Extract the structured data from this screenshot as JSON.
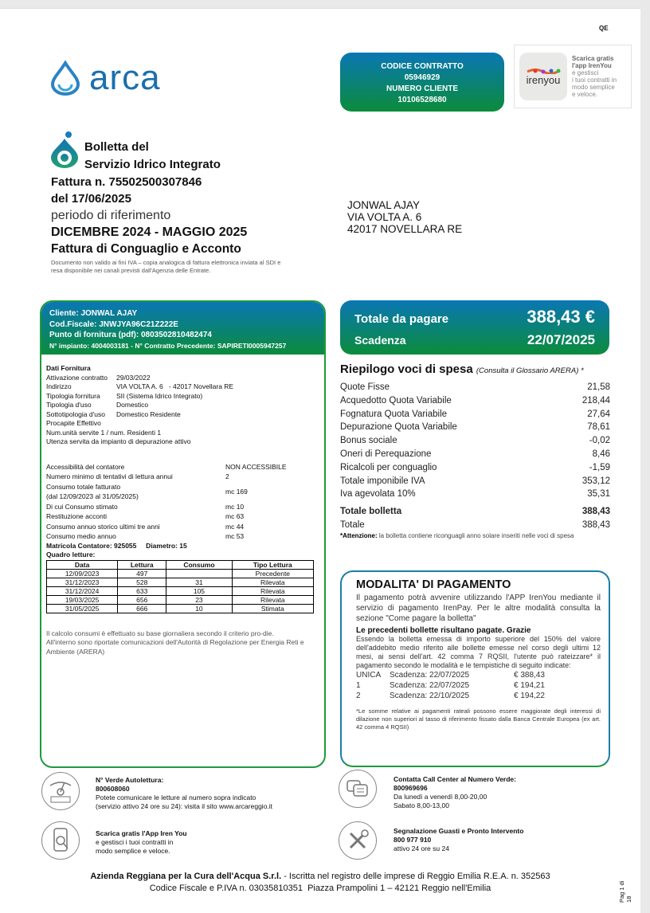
{
  "header": {
    "qe": "QE",
    "logo_text": "arca",
    "contract": {
      "codice_label": "CODICE CONTRATTO",
      "codice": "05946929",
      "cliente_label": "NUMERO CLIENTE",
      "cliente": "10106528680"
    },
    "app_promo": {
      "logo_text": "irenyou",
      "title1": "Scarica gratis",
      "title2": "l'app IrenYou",
      "line1": "e gestisci",
      "line2": "i tuoi contratti in",
      "line3": "modo semplice",
      "line4": "e veloce."
    }
  },
  "title": {
    "line1": "Bolletta del",
    "line2": "Servizio Idrico Integrato",
    "fattura": "Fattura n. 75502500307846",
    "data": "del 17/06/2025",
    "periodo_label": "periodo di riferimento",
    "periodo": "DICEMBRE 2024 - MAGGIO 2025",
    "tipo": "Fattura di Conguaglio e Acconto",
    "nota1": "Documento non valido ai fini IVA – copia analogica di fattura elettronica inviata al SDI e",
    "nota2": "resa disponibile nei canali previsti dall'Agenzia delle Entrate."
  },
  "address": {
    "name": "JONWAL AJAY",
    "street": "VIA VOLTA A. 6",
    "city": "42017 NOVELLARA RE"
  },
  "client": {
    "cliente": "Cliente: JONWAL AJAY",
    "cf": "Cod.Fiscale: JNWJYA96C21Z222E",
    "pdf": "Punto di fornitura (pdf): 0803502810482474",
    "impianto": "N° impianto: 4004003181   - N° Contratto Precedente: SAPIRETI0005947257"
  },
  "fornitura": {
    "title": "Dati Fornitura",
    "rows": [
      {
        "k": "Attivazione contratto",
        "v": "29/03/2022"
      },
      {
        "k": "Indirizzo",
        "v": "VIA VOLTA A. 6   - 42017 Novellara RE"
      },
      {
        "k": "Tipologia fornitura",
        "v": "SII (Sistema Idrico Integrato)"
      },
      {
        "k": "Tipologia d'uso",
        "v": "Domestico"
      },
      {
        "k": "Sottotipologia d'uso",
        "v": "Domestico Residente"
      }
    ],
    "procapite": "Procapite Effettivo",
    "unita": "Num.unità servite  1  / num. Residenti  1",
    "depurazione": "Utenza servita da impianto di depurazione attivo",
    "meter": [
      {
        "k": "Accessibilità del contatore",
        "v": "NON ACCESSIBILE"
      },
      {
        "k": "Numero minimo di tentativi di lettura annui",
        "v": "2"
      },
      {
        "k": "Consumo totale fatturato",
        "k2": "(dal 12/09/2023 al 31/05/2025)",
        "v": "mc 169"
      },
      {
        "k": "Di cui Consumo stimato",
        "v": "mc 10"
      },
      {
        "k": "Restituzione acconti",
        "v": "mc 63"
      },
      {
        "k": "Consumo annuo storico ultimi tre anni",
        "v": "mc 44"
      },
      {
        "k": "Consumo medio annuo",
        "v": "mc 53"
      }
    ],
    "matricola": "Matricola Contatore: 925055     Diametro: 15",
    "quadro": "Quadro letture:",
    "table_headers": [
      "Data",
      "Lettura",
      "Consumo",
      "Tipo Lettura"
    ],
    "table_rows": [
      [
        "12/09/2023",
        "497",
        "",
        "Precedente"
      ],
      [
        "31/12/2023",
        "528",
        "31",
        "Rilevata"
      ],
      [
        "31/12/2024",
        "633",
        "105",
        "Rilevata"
      ],
      [
        "19/03/2025",
        "656",
        "23",
        "Rilevata"
      ],
      [
        "31/05/2025",
        "666",
        "10",
        "Stimata"
      ]
    ],
    "note1": "Il calcolo consumi è effettuato su base giornaliera secondo il criterio pro-die.",
    "note2": "All'interno sono riportate comunicazioni dell'Autorità di Regolazione per Energia Reti e Ambiente  (ARERA)"
  },
  "total": {
    "label": "Totale da pagare",
    "amount": "388,43 €",
    "scad_label": "Scadenza",
    "scad": "22/07/2025"
  },
  "riepilogo": {
    "title": "Riepilogo voci di spesa",
    "subtitle": "(Consulta il Glossario ARERA) *",
    "rows": [
      {
        "k": "Quote Fisse",
        "v": "21,58"
      },
      {
        "k": "Acquedotto Quota Variabile",
        "v": "218,44"
      },
      {
        "k": "Fognatura Quota Variabile",
        "v": "27,64"
      },
      {
        "k": "Depurazione Quota Variabile",
        "v": "78,61"
      },
      {
        "k": "Bonus sociale",
        "v": "-0,02"
      },
      {
        "k": "Oneri di Perequazione",
        "v": "8,46"
      },
      {
        "k": "Ricalcoli per conguaglio",
        "v": "-1,59"
      },
      {
        "k": "Totale imponibile IVA",
        "v": "353,12"
      },
      {
        "k": "Iva agevolata 10%",
        "v": "35,31"
      }
    ],
    "tot_label": "Totale bolletta",
    "tot": "388,43",
    "totale_label": "Totale",
    "totale": "388,43",
    "att_bold": "*Attenzione:",
    "att": " la bolletta contiene riconguagli anno solare inseriti nelle voci di spesa"
  },
  "pagamento": {
    "title": "MODALITA' DI PAGAMENTO",
    "text": "Il pagamento potrà avvenire utilizzando l'APP IrenYou mediante il servizio di pagamento IrenPay. Per le altre modalità consulta la sezione \"Come pagare la bolletta\"",
    "pagate": "Le precedenti bollette risultano pagate. Grazie",
    "rate_text": "Essendo la bolletta emessa di importo superiore del 150% del valore dell'addebito medio riferito alle bollette emesse nel corso degli ultimi 12 mesi, ai sensi dell'art. 42 comma 7 RQSII, l'utente può rateizzare* il pagamento secondo le modalità e le tempistiche di seguito indicate:",
    "rate": [
      [
        "UNICA",
        "Scadenza: 22/07/2025",
        "€ 388,43"
      ],
      [
        "1",
        "Scadenza: 22/07/2025",
        "€ 194,21"
      ],
      [
        "2",
        "Scadenza: 22/10/2025",
        "€ 194,22"
      ]
    ],
    "note": "*Le somme relative ai pagamenti rateali possono essere maggiorate degli interessi di dilazione non superiori al tasso di riferimento fissato dalla Banca Centrale Europea (ex art. 42 comma 4 RQSII)"
  },
  "contacts": [
    {
      "title": "N° Verde Autolettura:",
      "number": "800608060",
      "l1": "Potete comunicare le letture al numero sopra indicato",
      "l2": "(servizio attivo 24 ore su 24): visita il sito www.arcareggio.it"
    },
    {
      "title": "Scarica gratis l'App Iren You",
      "number": "",
      "l1": "e gestisci i tuoi contratti in",
      "l2": "modo semplice e veloce."
    },
    {
      "title": "Contatta Call Center al Numero Verde:",
      "number": "800969696",
      "l1": "Da lunedì a venerdì 8,00-20,00",
      "l2": "Sabato 8,00-13,00"
    },
    {
      "title": "Segnalazione Guasti e Pronto Intervento",
      "number": "800 977 910",
      "l1": "attivo 24 ore su 24",
      "l2": ""
    }
  ],
  "footer": {
    "company": "Azienda Reggiana per la Cura dell'Acqua S.r.l.",
    "line1": " - Iscritta nel registro delle imprese di Reggio Emilia R.E.A. n. 352563",
    "line2": "Codice Fiscale e P.IVA n. 03035810351  Piazza Prampolini 1 – 42121 Reggio nell'Emilia",
    "page": "Pag 1 di 18"
  },
  "colors": {
    "blue": "#0a77b4",
    "green": "#0b8c3b"
  }
}
